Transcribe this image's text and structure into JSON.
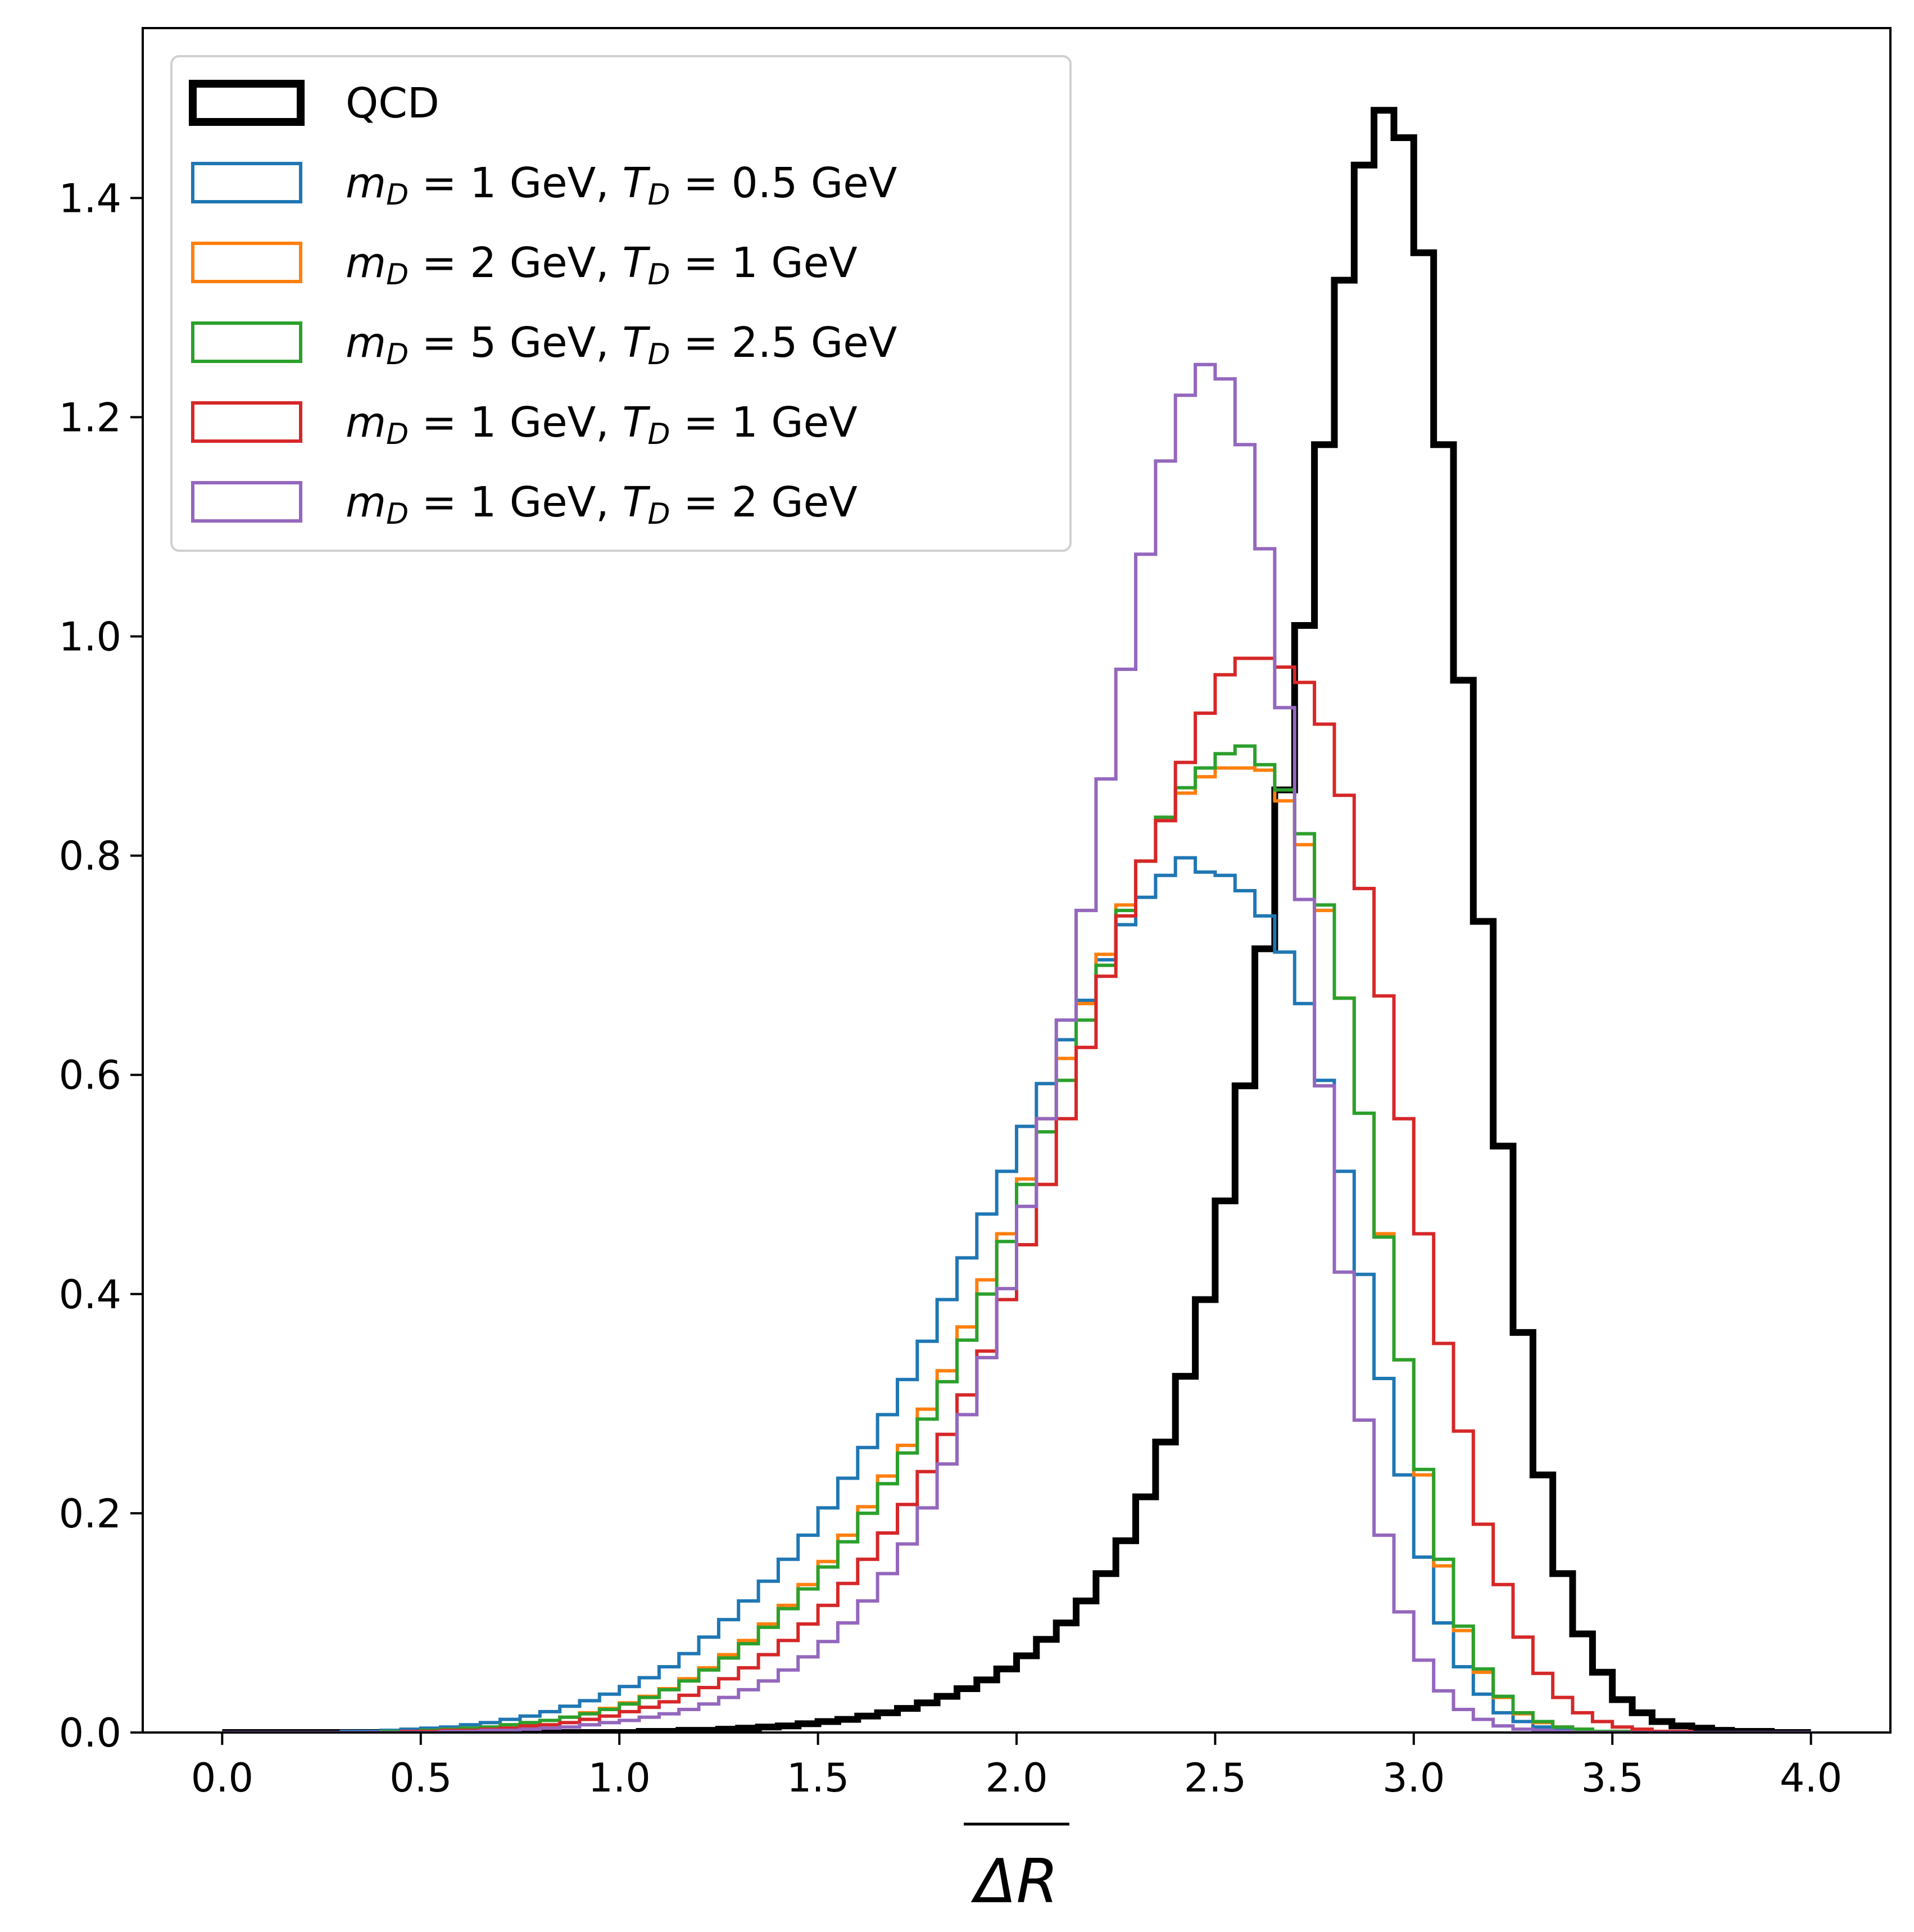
{
  "chart_data": {
    "type": "histogram-step",
    "xlabel": "ΔR",
    "ylabel": "",
    "title": "",
    "xlim": [
      -0.2,
      4.2
    ],
    "ylim": [
      0.0,
      1.555
    ],
    "xticks": [
      0.0,
      0.5,
      1.0,
      1.5,
      2.0,
      2.5,
      3.0,
      3.5,
      4.0
    ],
    "xtick_labels": [
      "0.0",
      "0.5",
      "1.0",
      "1.5",
      "2.0",
      "2.5",
      "3.0",
      "3.5",
      "4.0"
    ],
    "yticks": [
      0.0,
      0.2,
      0.4,
      0.6,
      0.8,
      1.0,
      1.2,
      1.4
    ],
    "ytick_labels": [
      "0.0",
      "0.2",
      "0.4",
      "0.6",
      "0.8",
      "1.0",
      "1.2",
      "1.4"
    ],
    "grid": false,
    "legend_position": "upper-left",
    "bin_edges": [
      0.0,
      0.05,
      0.1,
      0.15,
      0.2,
      0.25,
      0.3,
      0.35,
      0.4,
      0.45,
      0.5,
      0.55,
      0.6,
      0.65,
      0.7,
      0.75,
      0.8,
      0.85,
      0.9,
      0.95,
      1.0,
      1.05,
      1.1,
      1.15,
      1.2,
      1.25,
      1.3,
      1.35,
      1.4,
      1.45,
      1.5,
      1.55,
      1.6,
      1.65,
      1.7,
      1.75,
      1.8,
      1.85,
      1.9,
      1.95,
      2.0,
      2.05,
      2.1,
      2.15,
      2.2,
      2.25,
      2.3,
      2.35,
      2.4,
      2.45,
      2.5,
      2.55,
      2.6,
      2.65,
      2.7,
      2.75,
      2.8,
      2.85,
      2.9,
      2.95,
      3.0,
      3.05,
      3.1,
      3.15,
      3.2,
      3.25,
      3.3,
      3.35,
      3.4,
      3.45,
      3.5,
      3.55,
      3.6,
      3.65,
      3.7,
      3.75,
      3.8,
      3.85,
      3.9,
      3.95,
      4.0
    ],
    "series": [
      {
        "name": "QCD",
        "color": "#000000",
        "values": [
          0,
          0,
          0,
          0,
          0,
          0,
          0,
          0,
          0,
          0,
          0,
          0,
          0,
          0,
          0,
          0,
          0,
          0,
          0,
          0,
          0,
          0.001,
          0.001,
          0.002,
          0.002,
          0.003,
          0.004,
          0.005,
          0.006,
          0.008,
          0.01,
          0.012,
          0.015,
          0.018,
          0.022,
          0.027,
          0.033,
          0.04,
          0.048,
          0.058,
          0.07,
          0.085,
          0.1,
          0.12,
          0.145,
          0.175,
          0.215,
          0.265,
          0.325,
          0.395,
          0.485,
          0.59,
          0.715,
          0.86,
          1.01,
          1.175,
          1.325,
          1.43,
          1.48,
          1.455,
          1.35,
          1.175,
          0.96,
          0.74,
          0.535,
          0.365,
          0.235,
          0.145,
          0.09,
          0.055,
          0.03,
          0.018,
          0.01,
          0.006,
          0.004,
          0.002,
          0.001,
          0.001,
          0,
          0
        ]
      },
      {
        "name": "$m_D = 1$ GeV, $T_D = 0.5$ GeV",
        "label_parts": [
          "1",
          "0.5"
        ],
        "color": "#1f77b4",
        "values": [
          0,
          0,
          0,
          0,
          0,
          0,
          0.001,
          0.001,
          0.002,
          0.003,
          0.004,
          0.005,
          0.007,
          0.009,
          0.012,
          0.015,
          0.019,
          0.024,
          0.029,
          0.035,
          0.042,
          0.05,
          0.06,
          0.072,
          0.087,
          0.103,
          0.12,
          0.138,
          0.158,
          0.18,
          0.205,
          0.232,
          0.26,
          0.29,
          0.322,
          0.357,
          0.395,
          0.433,
          0.473,
          0.512,
          0.553,
          0.592,
          0.632,
          0.668,
          0.705,
          0.737,
          0.762,
          0.782,
          0.798,
          0.785,
          0.782,
          0.768,
          0.745,
          0.712,
          0.665,
          0.595,
          0.512,
          0.418,
          0.323,
          0.235,
          0.16,
          0.1,
          0.06,
          0.035,
          0.018,
          0.01,
          0.005,
          0.003,
          0.001,
          0.001,
          0,
          0,
          0,
          0,
          0,
          0,
          0,
          0,
          0,
          0
        ]
      },
      {
        "name": "$m_D = 2$ GeV, $T_D = 1$ GeV",
        "label_parts": [
          "2",
          "1"
        ],
        "color": "#ff7f0e",
        "values": [
          0,
          0,
          0,
          0,
          0,
          0,
          0,
          0,
          0.001,
          0.001,
          0.002,
          0.003,
          0.004,
          0.005,
          0.007,
          0.009,
          0.011,
          0.014,
          0.018,
          0.022,
          0.027,
          0.033,
          0.04,
          0.049,
          0.059,
          0.071,
          0.084,
          0.099,
          0.116,
          0.135,
          0.156,
          0.18,
          0.206,
          0.234,
          0.262,
          0.295,
          0.33,
          0.37,
          0.413,
          0.455,
          0.505,
          0.56,
          0.615,
          0.665,
          0.71,
          0.755,
          0.795,
          0.832,
          0.857,
          0.872,
          0.88,
          0.88,
          0.878,
          0.85,
          0.81,
          0.75,
          0.67,
          0.565,
          0.455,
          0.34,
          0.235,
          0.152,
          0.093,
          0.055,
          0.032,
          0.017,
          0.009,
          0.005,
          0.003,
          0.001,
          0.001,
          0,
          0,
          0,
          0,
          0,
          0,
          0,
          0,
          0
        ]
      },
      {
        "name": "$m_D = 5$ GeV, $T_D = 2.5$ GeV",
        "label_parts": [
          "5",
          "2.5"
        ],
        "color": "#2ca02c",
        "values": [
          0,
          0,
          0,
          0,
          0,
          0,
          0,
          0,
          0.001,
          0.001,
          0.002,
          0.003,
          0.004,
          0.005,
          0.007,
          0.009,
          0.011,
          0.014,
          0.017,
          0.021,
          0.026,
          0.032,
          0.039,
          0.047,
          0.057,
          0.068,
          0.081,
          0.096,
          0.113,
          0.131,
          0.151,
          0.174,
          0.2,
          0.227,
          0.255,
          0.286,
          0.32,
          0.358,
          0.4,
          0.448,
          0.5,
          0.548,
          0.595,
          0.65,
          0.7,
          0.75,
          0.795,
          0.835,
          0.862,
          0.88,
          0.893,
          0.9,
          0.883,
          0.86,
          0.82,
          0.755,
          0.67,
          0.565,
          0.452,
          0.34,
          0.24,
          0.158,
          0.097,
          0.058,
          0.033,
          0.018,
          0.01,
          0.005,
          0.003,
          0.001,
          0.001,
          0,
          0,
          0,
          0,
          0,
          0,
          0,
          0,
          0
        ]
      },
      {
        "name": "$m_D = 1$ GeV, $T_D = 1$ GeV",
        "label_parts": [
          "1",
          "1"
        ],
        "color": "#d62728",
        "values": [
          0,
          0,
          0,
          0,
          0,
          0,
          0,
          0,
          0,
          0.001,
          0.001,
          0.002,
          0.002,
          0.003,
          0.004,
          0.006,
          0.007,
          0.009,
          0.012,
          0.015,
          0.019,
          0.023,
          0.028,
          0.034,
          0.041,
          0.049,
          0.059,
          0.071,
          0.084,
          0.099,
          0.116,
          0.136,
          0.158,
          0.182,
          0.208,
          0.238,
          0.272,
          0.308,
          0.348,
          0.395,
          0.445,
          0.5,
          0.56,
          0.625,
          0.69,
          0.745,
          0.795,
          0.832,
          0.885,
          0.93,
          0.965,
          0.98,
          0.98,
          0.972,
          0.958,
          0.92,
          0.855,
          0.77,
          0.672,
          0.56,
          0.455,
          0.355,
          0.275,
          0.19,
          0.135,
          0.087,
          0.054,
          0.032,
          0.018,
          0.01,
          0.005,
          0.003,
          0.001,
          0.001,
          0,
          0,
          0,
          0,
          0,
          0
        ]
      },
      {
        "name": "$m_D = 1$ GeV, $T_D = 2$ GeV",
        "label_parts": [
          "1",
          "2"
        ],
        "color": "#9467bd",
        "values": [
          0,
          0,
          0,
          0,
          0,
          0,
          0,
          0,
          0,
          0,
          0,
          0.001,
          0.001,
          0.002,
          0.002,
          0.003,
          0.004,
          0.005,
          0.007,
          0.009,
          0.011,
          0.014,
          0.017,
          0.021,
          0.026,
          0.032,
          0.039,
          0.047,
          0.057,
          0.069,
          0.083,
          0.1,
          0.12,
          0.145,
          0.172,
          0.205,
          0.245,
          0.29,
          0.342,
          0.405,
          0.48,
          0.56,
          0.65,
          0.75,
          0.87,
          0.97,
          1.075,
          1.16,
          1.22,
          1.248,
          1.235,
          1.175,
          1.08,
          0.935,
          0.76,
          0.59,
          0.42,
          0.285,
          0.18,
          0.11,
          0.066,
          0.038,
          0.021,
          0.012,
          0.006,
          0.003,
          0.002,
          0.001,
          0,
          0,
          0,
          0,
          0,
          0,
          0,
          0,
          0,
          0,
          0,
          0
        ]
      }
    ]
  }
}
